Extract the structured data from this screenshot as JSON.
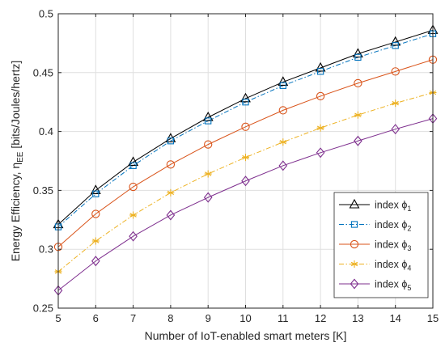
{
  "chart_data": {
    "type": "line",
    "title": "",
    "xlabel": "Number of IoT-enabled smart meters [K]",
    "ylabel": "Energy Efficiency, η",
    "ylabel_sub": "EE",
    "ylabel_unit": " [bits/Joules/hertz]",
    "xlim": [
      5,
      15
    ],
    "ylim": [
      0.25,
      0.5
    ],
    "x_ticks": [
      "5",
      "6",
      "7",
      "8",
      "9",
      "10",
      "11",
      "12",
      "13",
      "14",
      "15"
    ],
    "y_ticks": [
      "0.25",
      "0.3",
      "0.35",
      "0.4",
      "0.45",
      "0.5"
    ],
    "grid": true,
    "legend_position": "bottom-right",
    "x": [
      5,
      6,
      7,
      8,
      9,
      10,
      11,
      12,
      13,
      14,
      15
    ],
    "series": [
      {
        "name": "index ϕ",
        "sub": "1",
        "color": "#000000",
        "dash": "solid",
        "marker": "triangle",
        "values": [
          0.321,
          0.35,
          0.374,
          0.394,
          0.412,
          0.428,
          0.442,
          0.454,
          0.466,
          0.476,
          0.486
        ]
      },
      {
        "name": "index ϕ",
        "sub": "2",
        "color": "#0072bd",
        "dash": "dashdot",
        "marker": "square",
        "values": [
          0.319,
          0.347,
          0.371,
          0.392,
          0.409,
          0.425,
          0.439,
          0.451,
          0.463,
          0.473,
          0.483
        ]
      },
      {
        "name": "index ϕ",
        "sub": "3",
        "color": "#d95319",
        "dash": "solid",
        "marker": "circle",
        "values": [
          0.302,
          0.33,
          0.353,
          0.372,
          0.389,
          0.404,
          0.418,
          0.43,
          0.441,
          0.451,
          0.461
        ]
      },
      {
        "name": "index ϕ",
        "sub": "4",
        "color": "#edb120",
        "dash": "dashdot",
        "marker": "asterisk",
        "values": [
          0.281,
          0.307,
          0.329,
          0.348,
          0.364,
          0.378,
          0.391,
          0.403,
          0.414,
          0.424,
          0.433
        ]
      },
      {
        "name": "index ϕ",
        "sub": "5",
        "color": "#7e2f8e",
        "dash": "solid",
        "marker": "diamond",
        "values": [
          0.265,
          0.29,
          0.311,
          0.329,
          0.344,
          0.358,
          0.371,
          0.382,
          0.392,
          0.402,
          0.411
        ]
      }
    ]
  }
}
